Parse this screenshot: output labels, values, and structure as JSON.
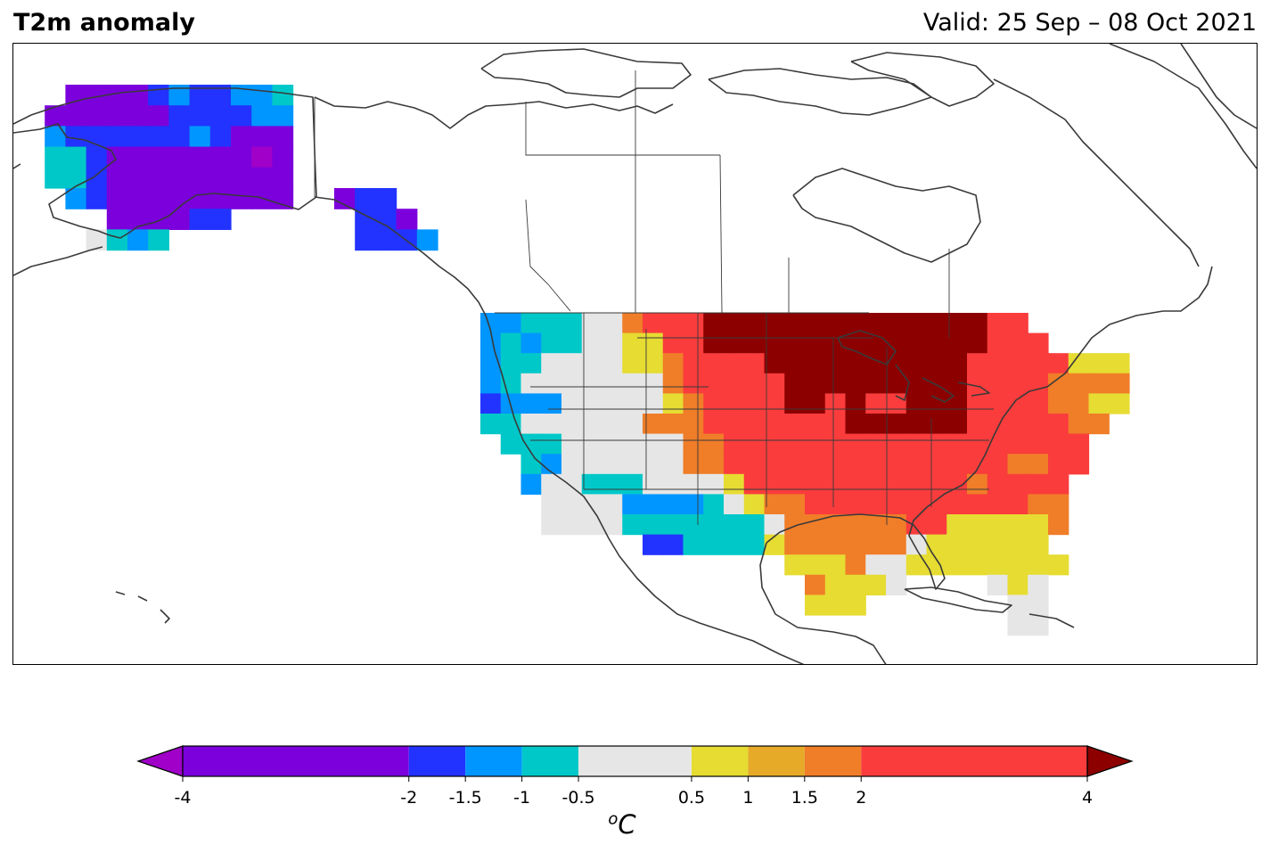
{
  "header": {
    "title": "T2m anomaly",
    "valid": "Valid: 25 Sep – 08 Oct 2021"
  },
  "colorbar": {
    "unit_base": "C",
    "unit_sup": "o",
    "bounds": [
      -4,
      -2,
      -1.5,
      -1,
      -0.5,
      0.5,
      1,
      1.5,
      2,
      4
    ],
    "tick_labels": [
      "-4",
      "-2",
      "-1.5",
      "-1",
      "-0.5",
      "0.5",
      "1",
      "1.5",
      "2",
      "4"
    ],
    "colors": [
      "#7b00dc",
      "#2233ff",
      "#0096ff",
      "#00c8c8",
      "#e6e6e6",
      "#e6dc32",
      "#e6aa28",
      "#f07d28",
      "#fa3c3c"
    ],
    "under_color": "#a000c8",
    "over_color": "#8c0000"
  },
  "legend": {
    "bins": [
      "< -4",
      "-4 to -2",
      "-2 to -1.5",
      "-1.5 to -1",
      "-1 to -0.5",
      "-0.5 to 0.5",
      "0.5 to 1",
      "1 to 1.5",
      "1.5 to 2",
      "2 to 4",
      "> 4"
    ]
  }
}
